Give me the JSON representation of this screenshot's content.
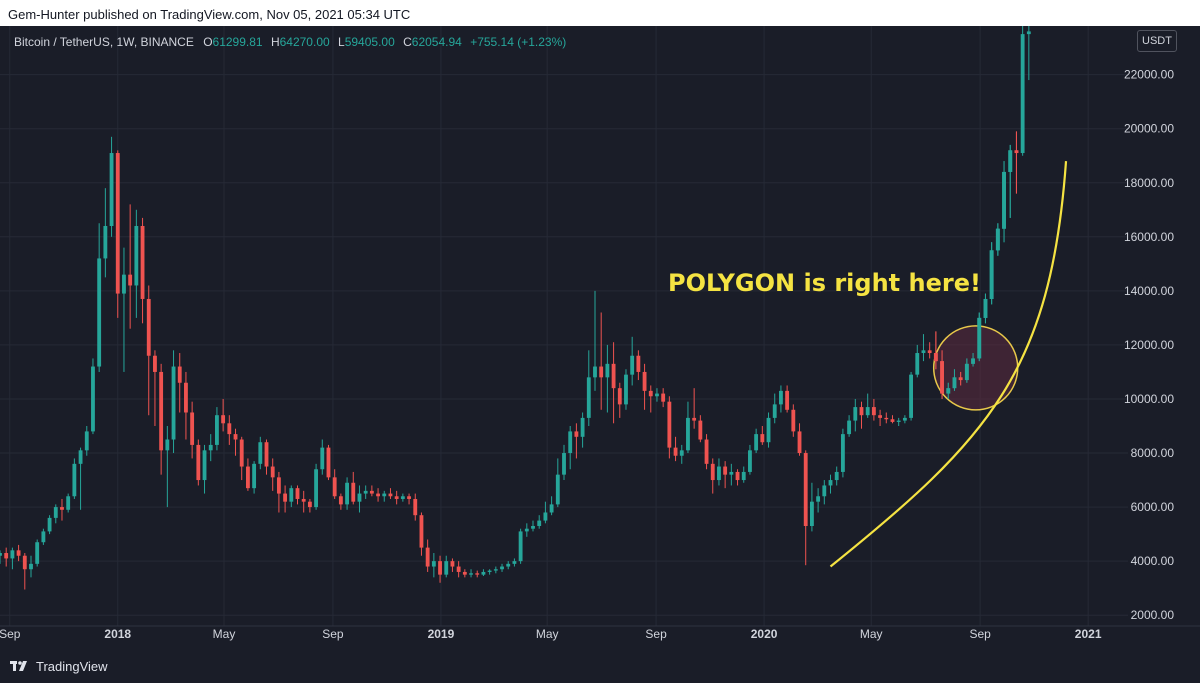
{
  "header": {
    "publish_line": "Gem-Hunter published on TradingView.com, Nov 05, 2021 05:34 UTC"
  },
  "legend": {
    "symbol": "Bitcoin / TetherUS, 1W, BINANCE",
    "o_label": "O",
    "o_value": "61299.81",
    "h_label": "H",
    "h_value": "64270.00",
    "l_label": "L",
    "l_value": "59405.00",
    "c_label": "C",
    "c_value": "62054.94",
    "change": "+755.14 (+1.23%)"
  },
  "currency_badge": "USDT",
  "annotation": "POLYGON is right here!",
  "footer": {
    "brand": "TradingView"
  },
  "colors": {
    "background": "#1a1d28",
    "up": "#26a69a",
    "down": "#ef5350",
    "annotation": "#f5e342",
    "circle_fill": "#5c2a3e",
    "circle_stroke": "#e8c84a"
  },
  "chart_data": {
    "type": "candlestick",
    "title": "Bitcoin / TetherUS, 1W, BINANCE",
    "xlabel": "",
    "ylabel": "",
    "ylim": [
      1600,
      23800
    ],
    "y_ticks": [
      2000,
      4000,
      6000,
      8000,
      10000,
      12000,
      14000,
      16000,
      18000,
      20000,
      22000
    ],
    "y_tick_labels": [
      "2000.00",
      "4000.00",
      "6000.00",
      "8000.00",
      "10000.00",
      "12000.00",
      "14000.00",
      "16000.00",
      "18000.00",
      "20000.00",
      "22000.00"
    ],
    "x_range": [
      "2017-08-21",
      "2021-02-15"
    ],
    "x_ticks": [
      {
        "date": "2017-09-01",
        "label": "Sep",
        "bold": false
      },
      {
        "date": "2018-01-01",
        "label": "2018",
        "bold": true
      },
      {
        "date": "2018-05-01",
        "label": "May",
        "bold": false
      },
      {
        "date": "2018-09-01",
        "label": "Sep",
        "bold": false
      },
      {
        "date": "2019-01-01",
        "label": "2019",
        "bold": true
      },
      {
        "date": "2019-05-01",
        "label": "May",
        "bold": false
      },
      {
        "date": "2019-09-01",
        "label": "Sep",
        "bold": false
      },
      {
        "date": "2020-01-01",
        "label": "2020",
        "bold": true
      },
      {
        "date": "2020-05-01",
        "label": "May",
        "bold": false
      },
      {
        "date": "2020-09-01",
        "label": "Sep",
        "bold": false
      },
      {
        "date": "2021-01-01",
        "label": "2021",
        "bold": true
      }
    ],
    "grid": true,
    "interval": "1W",
    "start_date": "2017-08-21",
    "candles": [
      [
        4200,
        4400,
        3900,
        4300
      ],
      [
        4300,
        4500,
        3800,
        4100
      ],
      [
        4100,
        4500,
        3700,
        4400
      ],
      [
        4400,
        4600,
        4000,
        4200
      ],
      [
        4200,
        4300,
        2950,
        3700
      ],
      [
        3700,
        4200,
        3400,
        3900
      ],
      [
        3900,
        4800,
        3800,
        4700
      ],
      [
        4700,
        5200,
        4600,
        5100
      ],
      [
        5100,
        5700,
        5000,
        5600
      ],
      [
        5600,
        6100,
        5400,
        6000
      ],
      [
        6000,
        6300,
        5500,
        5900
      ],
      [
        5900,
        6500,
        5800,
        6400
      ],
      [
        6400,
        7800,
        6300,
        7600
      ],
      [
        7600,
        8200,
        5900,
        8100
      ],
      [
        8100,
        9000,
        7900,
        8800
      ],
      [
        8800,
        11500,
        8700,
        11200
      ],
      [
        11200,
        16500,
        11000,
        15200
      ],
      [
        15200,
        17800,
        14500,
        16400
      ],
      [
        16400,
        19700,
        16000,
        19100
      ],
      [
        19100,
        19200,
        13000,
        13900
      ],
      [
        13900,
        15600,
        11000,
        14600
      ],
      [
        14600,
        17200,
        12600,
        14200
      ],
      [
        14200,
        17000,
        13000,
        16400
      ],
      [
        16400,
        16700,
        12800,
        13700
      ],
      [
        13700,
        14200,
        9400,
        11600
      ],
      [
        11600,
        11800,
        9000,
        11000
      ],
      [
        11000,
        11300,
        7200,
        8100
      ],
      [
        8100,
        9000,
        6000,
        8500
      ],
      [
        8500,
        11800,
        8000,
        11200
      ],
      [
        11200,
        11700,
        9500,
        10600
      ],
      [
        10600,
        11000,
        8500,
        9500
      ],
      [
        9500,
        9900,
        7800,
        8300
      ],
      [
        8300,
        8500,
        6800,
        7000
      ],
      [
        7000,
        8300,
        6500,
        8100
      ],
      [
        8100,
        8700,
        7700,
        8300
      ],
      [
        8300,
        9700,
        8100,
        9400
      ],
      [
        9400,
        10000,
        8800,
        9100
      ],
      [
        9100,
        9400,
        8300,
        8700
      ],
      [
        8700,
        8900,
        7900,
        8500
      ],
      [
        8500,
        8600,
        7000,
        7500
      ],
      [
        7500,
        7800,
        6600,
        6700
      ],
      [
        6700,
        7700,
        6500,
        7600
      ],
      [
        7600,
        8600,
        7400,
        8400
      ],
      [
        8400,
        8500,
        7200,
        7500
      ],
      [
        7500,
        7800,
        6600,
        7100
      ],
      [
        7100,
        7300,
        5800,
        6500
      ],
      [
        6500,
        6800,
        5800,
        6200
      ],
      [
        6200,
        6800,
        6000,
        6700
      ],
      [
        6700,
        6800,
        6100,
        6300
      ],
      [
        6300,
        6600,
        5800,
        6200
      ],
      [
        6200,
        6300,
        5800,
        6000
      ],
      [
        6000,
        7600,
        5900,
        7400
      ],
      [
        7400,
        8500,
        7200,
        8200
      ],
      [
        8200,
        8300,
        7000,
        7100
      ],
      [
        7100,
        7400,
        6300,
        6400
      ],
      [
        6400,
        6500,
        5900,
        6100
      ],
      [
        6100,
        7100,
        5900,
        6900
      ],
      [
        6900,
        7300,
        6100,
        6200
      ],
      [
        6200,
        6800,
        5800,
        6500
      ],
      [
        6500,
        6800,
        6300,
        6600
      ],
      [
        6600,
        6800,
        6400,
        6500
      ],
      [
        6500,
        6700,
        6200,
        6400
      ],
      [
        6400,
        6600,
        6200,
        6500
      ],
      [
        6500,
        6700,
        6300,
        6400
      ],
      [
        6400,
        6600,
        6100,
        6300
      ],
      [
        6300,
        6500,
        6200,
        6400
      ],
      [
        6400,
        6500,
        6100,
        6300
      ],
      [
        6300,
        6500,
        5500,
        5700
      ],
      [
        5700,
        5800,
        4200,
        4500
      ],
      [
        4500,
        4800,
        3600,
        3800
      ],
      [
        3800,
        4300,
        3400,
        4000
      ],
      [
        4000,
        4200,
        3200,
        3500
      ],
      [
        3500,
        4200,
        3400,
        4000
      ],
      [
        4000,
        4100,
        3600,
        3800
      ],
      [
        3800,
        4000,
        3400,
        3600
      ],
      [
        3600,
        3700,
        3400,
        3500
      ],
      [
        3500,
        3700,
        3400,
        3550
      ],
      [
        3550,
        3650,
        3400,
        3500
      ],
      [
        3500,
        3700,
        3450,
        3600
      ],
      [
        3600,
        3700,
        3500,
        3650
      ],
      [
        3650,
        3800,
        3550,
        3700
      ],
      [
        3700,
        3900,
        3600,
        3800
      ],
      [
        3800,
        4000,
        3700,
        3900
      ],
      [
        3900,
        4100,
        3800,
        4000
      ],
      [
        4000,
        5200,
        3900,
        5100
      ],
      [
        5100,
        5400,
        4900,
        5200
      ],
      [
        5200,
        5500,
        5100,
        5300
      ],
      [
        5300,
        5700,
        5200,
        5500
      ],
      [
        5500,
        6200,
        5400,
        5800
      ],
      [
        5800,
        6400,
        5700,
        6100
      ],
      [
        6100,
        7800,
        6000,
        7200
      ],
      [
        7200,
        8300,
        7000,
        8000
      ],
      [
        8000,
        9000,
        7400,
        8800
      ],
      [
        8800,
        9100,
        7800,
        8600
      ],
      [
        8600,
        9500,
        8200,
        9300
      ],
      [
        9300,
        11800,
        9000,
        10800
      ],
      [
        10800,
        14000,
        10300,
        11200
      ],
      [
        11200,
        13200,
        9600,
        10800
      ],
      [
        10800,
        12000,
        9500,
        11300
      ],
      [
        11300,
        12100,
        9100,
        10400
      ],
      [
        10400,
        10600,
        9300,
        9800
      ],
      [
        9800,
        11100,
        9600,
        10900
      ],
      [
        10900,
        12300,
        10500,
        11600
      ],
      [
        11600,
        11800,
        10700,
        11000
      ],
      [
        11000,
        11300,
        9600,
        10300
      ],
      [
        10300,
        10500,
        9500,
        10100
      ],
      [
        10100,
        10400,
        9900,
        10200
      ],
      [
        10200,
        10400,
        9700,
        9900
      ],
      [
        9900,
        10100,
        7800,
        8200
      ],
      [
        8200,
        8600,
        7700,
        7900
      ],
      [
        7900,
        8300,
        7600,
        8100
      ],
      [
        8100,
        9900,
        8000,
        9300
      ],
      [
        9300,
        10400,
        8900,
        9200
      ],
      [
        9200,
        9400,
        8400,
        8500
      ],
      [
        8500,
        8700,
        7400,
        7600
      ],
      [
        7600,
        7800,
        6500,
        7000
      ],
      [
        7000,
        7800,
        6800,
        7500
      ],
      [
        7500,
        7700,
        6700,
        7200
      ],
      [
        7200,
        7600,
        6800,
        7300
      ],
      [
        7300,
        7400,
        6800,
        7000
      ],
      [
        7000,
        7500,
        6900,
        7300
      ],
      [
        7300,
        8300,
        7200,
        8100
      ],
      [
        8100,
        8900,
        8000,
        8700
      ],
      [
        8700,
        9000,
        8300,
        8400
      ],
      [
        8400,
        9500,
        8200,
        9300
      ],
      [
        9300,
        10200,
        9100,
        9800
      ],
      [
        9800,
        10500,
        9500,
        10300
      ],
      [
        10300,
        10500,
        9500,
        9600
      ],
      [
        9600,
        9800,
        8600,
        8800
      ],
      [
        8800,
        9100,
        7900,
        8000
      ],
      [
        8000,
        8100,
        3850,
        5300
      ],
      [
        5300,
        6900,
        5100,
        6200
      ],
      [
        6200,
        6700,
        5800,
        6400
      ],
      [
        6400,
        7000,
        6100,
        6800
      ],
      [
        6800,
        7200,
        6500,
        7000
      ],
      [
        7000,
        7500,
        6800,
        7300
      ],
      [
        7300,
        8900,
        7100,
        8700
      ],
      [
        8700,
        9400,
        8600,
        9200
      ],
      [
        9200,
        10000,
        8800,
        9700
      ],
      [
        9700,
        9900,
        8900,
        9400
      ],
      [
        9400,
        10200,
        9300,
        9700
      ],
      [
        9700,
        10000,
        9200,
        9400
      ],
      [
        9400,
        9600,
        9000,
        9300
      ],
      [
        9300,
        9500,
        9100,
        9250
      ],
      [
        9250,
        9400,
        9100,
        9150
      ],
      [
        9150,
        9300,
        9000,
        9200
      ],
      [
        9200,
        9400,
        9100,
        9300
      ],
      [
        9300,
        11000,
        9200,
        10900
      ],
      [
        10900,
        12000,
        10800,
        11700
      ],
      [
        11700,
        12400,
        11400,
        11800
      ],
      [
        11800,
        12100,
        11500,
        11700
      ],
      [
        11700,
        12500,
        11100,
        11400
      ],
      [
        11400,
        11800,
        10000,
        10200
      ],
      [
        10200,
        10600,
        10000,
        10400
      ],
      [
        10400,
        11100,
        10300,
        10800
      ],
      [
        10800,
        11000,
        10500,
        10700
      ],
      [
        10700,
        11500,
        10600,
        11300
      ],
      [
        11300,
        11700,
        11200,
        11500
      ],
      [
        11500,
        13200,
        11400,
        13000
      ],
      [
        13000,
        13900,
        12800,
        13700
      ],
      [
        13700,
        15800,
        13500,
        15500
      ],
      [
        15500,
        16500,
        15300,
        16300
      ],
      [
        16300,
        18800,
        15800,
        18400
      ],
      [
        18400,
        19400,
        16700,
        19200
      ],
      [
        19200,
        19900,
        17600,
        19100
      ],
      [
        19100,
        23800,
        19000,
        23500
      ],
      [
        23500,
        23800,
        21800,
        23600
      ]
    ],
    "trend_curve_note": "yellow parabolic curve from ~3800 (Mar 2020) to ~18800 (Dec 2020)"
  }
}
